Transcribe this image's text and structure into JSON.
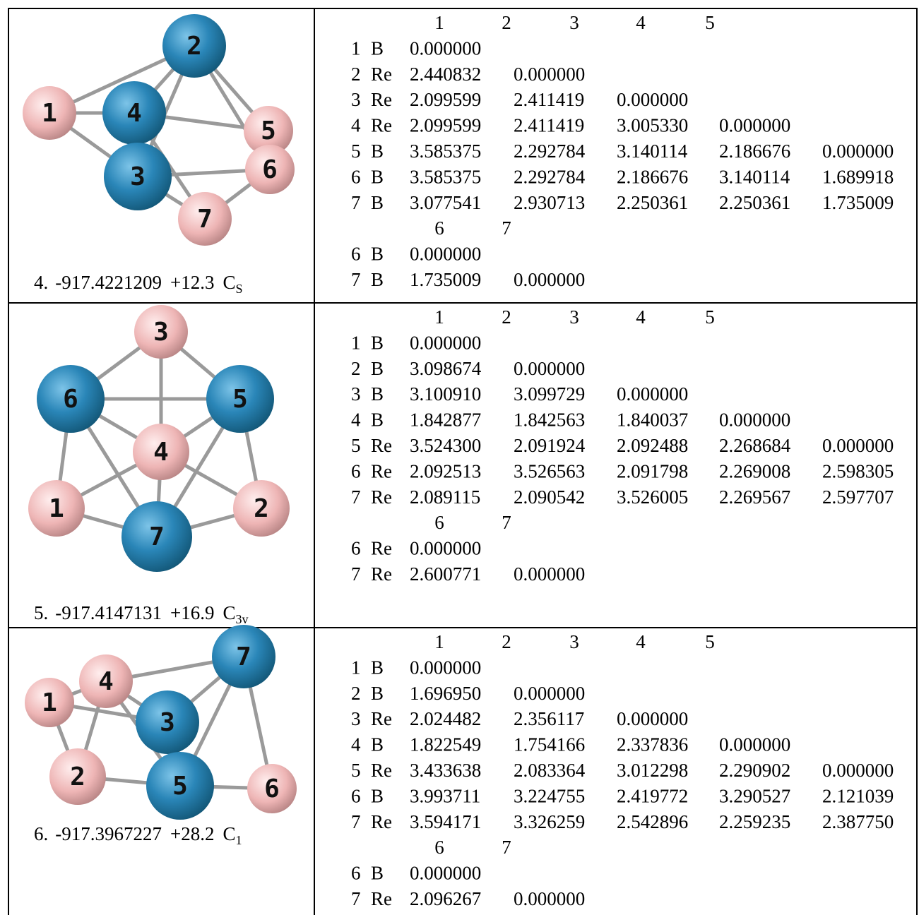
{
  "rows": [
    {
      "atoms": [
        "1",
        "2",
        "3",
        "4",
        "5",
        "6",
        "7"
      ],
      "caption": {
        "index": "4.",
        "energy": "-917.4221209",
        "relative": "+12.3",
        "symmetry": "C",
        "symmetry_sub": "S"
      },
      "matrix": {
        "header1": [
          "1",
          "2",
          "3",
          "4",
          "5"
        ],
        "rows1": [
          {
            "index": "1",
            "element": "B",
            "values": [
              "0.000000"
            ]
          },
          {
            "index": "2",
            "element": "Re",
            "values": [
              "2.440832",
              "0.000000"
            ]
          },
          {
            "index": "3",
            "element": "Re",
            "values": [
              "2.099599",
              "2.411419",
              "0.000000"
            ]
          },
          {
            "index": "4",
            "element": "Re",
            "values": [
              "2.099599",
              "2.411419",
              "3.005330",
              "0.000000"
            ]
          },
          {
            "index": "5",
            "element": "B",
            "values": [
              "3.585375",
              "2.292784",
              "3.140114",
              "2.186676",
              "0.000000"
            ]
          },
          {
            "index": "6",
            "element": "B",
            "values": [
              "3.585375",
              "2.292784",
              "2.186676",
              "3.140114",
              "1.689918"
            ]
          },
          {
            "index": "7",
            "element": "B",
            "values": [
              "3.077541",
              "2.930713",
              "2.250361",
              "2.250361",
              "1.735009"
            ]
          }
        ],
        "header2": [
          "6",
          "7"
        ],
        "rows2": [
          {
            "index": "6",
            "element": "B",
            "values": [
              "0.000000"
            ]
          },
          {
            "index": "7",
            "element": "B",
            "values": [
              "1.735009",
              "0.000000"
            ]
          }
        ]
      }
    },
    {
      "atoms": [
        "1",
        "2",
        "3",
        "4",
        "5",
        "6",
        "7"
      ],
      "caption": {
        "index": "5.",
        "energy": "-917.4147131",
        "relative": "+16.9",
        "symmetry": "C",
        "symmetry_sub": "3v"
      },
      "matrix": {
        "header1": [
          "1",
          "2",
          "3",
          "4",
          "5"
        ],
        "rows1": [
          {
            "index": "1",
            "element": "B",
            "values": [
              "0.000000"
            ]
          },
          {
            "index": "2",
            "element": "B",
            "values": [
              "3.098674",
              "0.000000"
            ]
          },
          {
            "index": "3",
            "element": "B",
            "values": [
              "3.100910",
              "3.099729",
              "0.000000"
            ]
          },
          {
            "index": "4",
            "element": "B",
            "values": [
              "1.842877",
              "1.842563",
              "1.840037",
              "0.000000"
            ]
          },
          {
            "index": "5",
            "element": "Re",
            "values": [
              "3.524300",
              "2.091924",
              "2.092488",
              "2.268684",
              "0.000000"
            ]
          },
          {
            "index": "6",
            "element": "Re",
            "values": [
              "2.092513",
              "3.526563",
              "2.091798",
              "2.269008",
              "2.598305"
            ]
          },
          {
            "index": "7",
            "element": "Re",
            "values": [
              "2.089115",
              "2.090542",
              "3.526005",
              "2.269567",
              "2.597707"
            ]
          }
        ],
        "header2": [
          "6",
          "7"
        ],
        "rows2": [
          {
            "index": "6",
            "element": "Re",
            "values": [
              "0.000000"
            ]
          },
          {
            "index": "7",
            "element": "Re",
            "values": [
              "2.600771",
              "0.000000"
            ]
          }
        ]
      }
    },
    {
      "atoms": [
        "1",
        "2",
        "3",
        "4",
        "5",
        "6",
        "7"
      ],
      "caption": {
        "index": "6.",
        "energy": "-917.3967227",
        "relative": "+28.2",
        "symmetry": "C",
        "symmetry_sub": "1"
      },
      "matrix": {
        "header1": [
          "1",
          "2",
          "3",
          "4",
          "5"
        ],
        "rows1": [
          {
            "index": "1",
            "element": "B",
            "values": [
              "0.000000"
            ]
          },
          {
            "index": "2",
            "element": "B",
            "values": [
              "1.696950",
              "0.000000"
            ]
          },
          {
            "index": "3",
            "element": "Re",
            "values": [
              "2.024482",
              "2.356117",
              "0.000000"
            ]
          },
          {
            "index": "4",
            "element": "B",
            "values": [
              "1.822549",
              "1.754166",
              "2.337836",
              "0.000000"
            ]
          },
          {
            "index": "5",
            "element": "Re",
            "values": [
              "3.433638",
              "2.083364",
              "3.012298",
              "2.290902",
              "0.000000"
            ]
          },
          {
            "index": "6",
            "element": "B",
            "values": [
              "3.993711",
              "3.224755",
              "2.419772",
              "3.290527",
              "2.121039"
            ]
          },
          {
            "index": "7",
            "element": "Re",
            "values": [
              "3.594171",
              "3.326259",
              "2.542896",
              "2.259235",
              "2.387750"
            ]
          }
        ],
        "header2": [
          "6",
          "7"
        ],
        "rows2": [
          {
            "index": "6",
            "element": "B",
            "values": [
              "0.000000"
            ]
          },
          {
            "index": "7",
            "element": "Re",
            "values": [
              "2.096267",
              "0.000000"
            ]
          }
        ]
      }
    }
  ]
}
